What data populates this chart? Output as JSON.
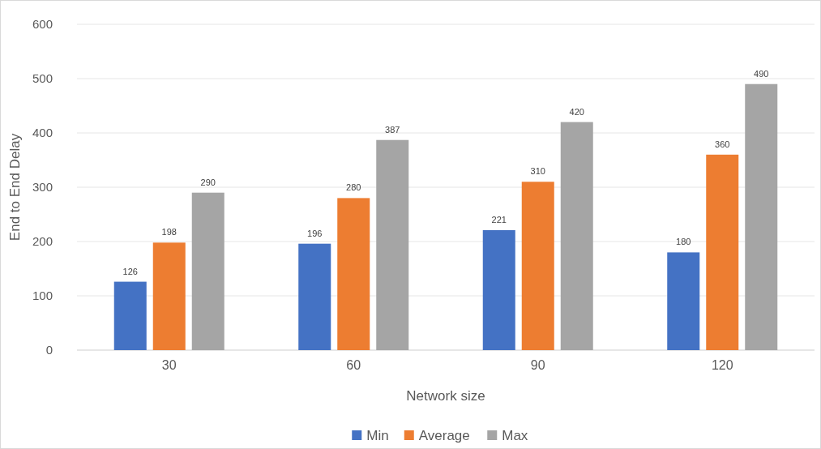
{
  "chart_data": {
    "type": "bar",
    "xlabel": "Network size",
    "ylabel": "End to End Delay",
    "categories": [
      "30",
      "60",
      "90",
      "120"
    ],
    "series": [
      {
        "name": "Min",
        "color": "#4472c4",
        "values": [
          126,
          196,
          221,
          180
        ]
      },
      {
        "name": "Average",
        "color": "#ed7d31",
        "values": [
          198,
          280,
          310,
          360
        ]
      },
      {
        "name": "Max",
        "color": "#a5a5a5",
        "values": [
          290,
          387,
          420,
          490
        ]
      }
    ],
    "ylim": [
      0,
      600
    ],
    "yticks": [
      0,
      100,
      200,
      300,
      400,
      500,
      600
    ],
    "grid": "y",
    "legend": "bottom",
    "data_labels": true
  }
}
